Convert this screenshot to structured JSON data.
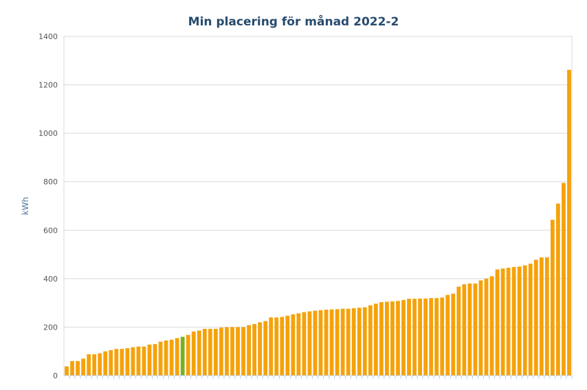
{
  "chart_data": {
    "type": "bar",
    "title": "Min placering för månad 2022-2",
    "xlabel": "",
    "ylabel": "kWh",
    "ylim": [
      0,
      1400
    ],
    "yticks": [
      0,
      200,
      400,
      600,
      800,
      1000,
      1200,
      1400
    ],
    "grid": true,
    "legend": "none",
    "colors": {
      "bar": "#f5a20a",
      "highlight": "#7ab020",
      "grid": "#d8d8d8",
      "axis": "#c0d0e0"
    },
    "highlight_index": 21,
    "values": [
      38,
      60,
      60,
      70,
      88,
      88,
      92,
      100,
      105,
      110,
      110,
      113,
      117,
      120,
      120,
      128,
      130,
      140,
      145,
      148,
      155,
      160,
      168,
      182,
      186,
      193,
      193,
      193,
      198,
      200,
      200,
      200,
      200,
      208,
      213,
      220,
      225,
      240,
      240,
      242,
      247,
      253,
      257,
      262,
      265,
      268,
      270,
      272,
      273,
      274,
      276,
      276,
      278,
      280,
      282,
      290,
      297,
      303,
      305,
      306,
      308,
      312,
      317,
      317,
      318,
      318,
      320,
      320,
      322,
      333,
      338,
      367,
      377,
      380,
      380,
      393,
      400,
      410,
      438,
      442,
      445,
      448,
      450,
      455,
      462,
      478,
      488,
      488,
      643,
      710,
      795,
      1262
    ]
  }
}
